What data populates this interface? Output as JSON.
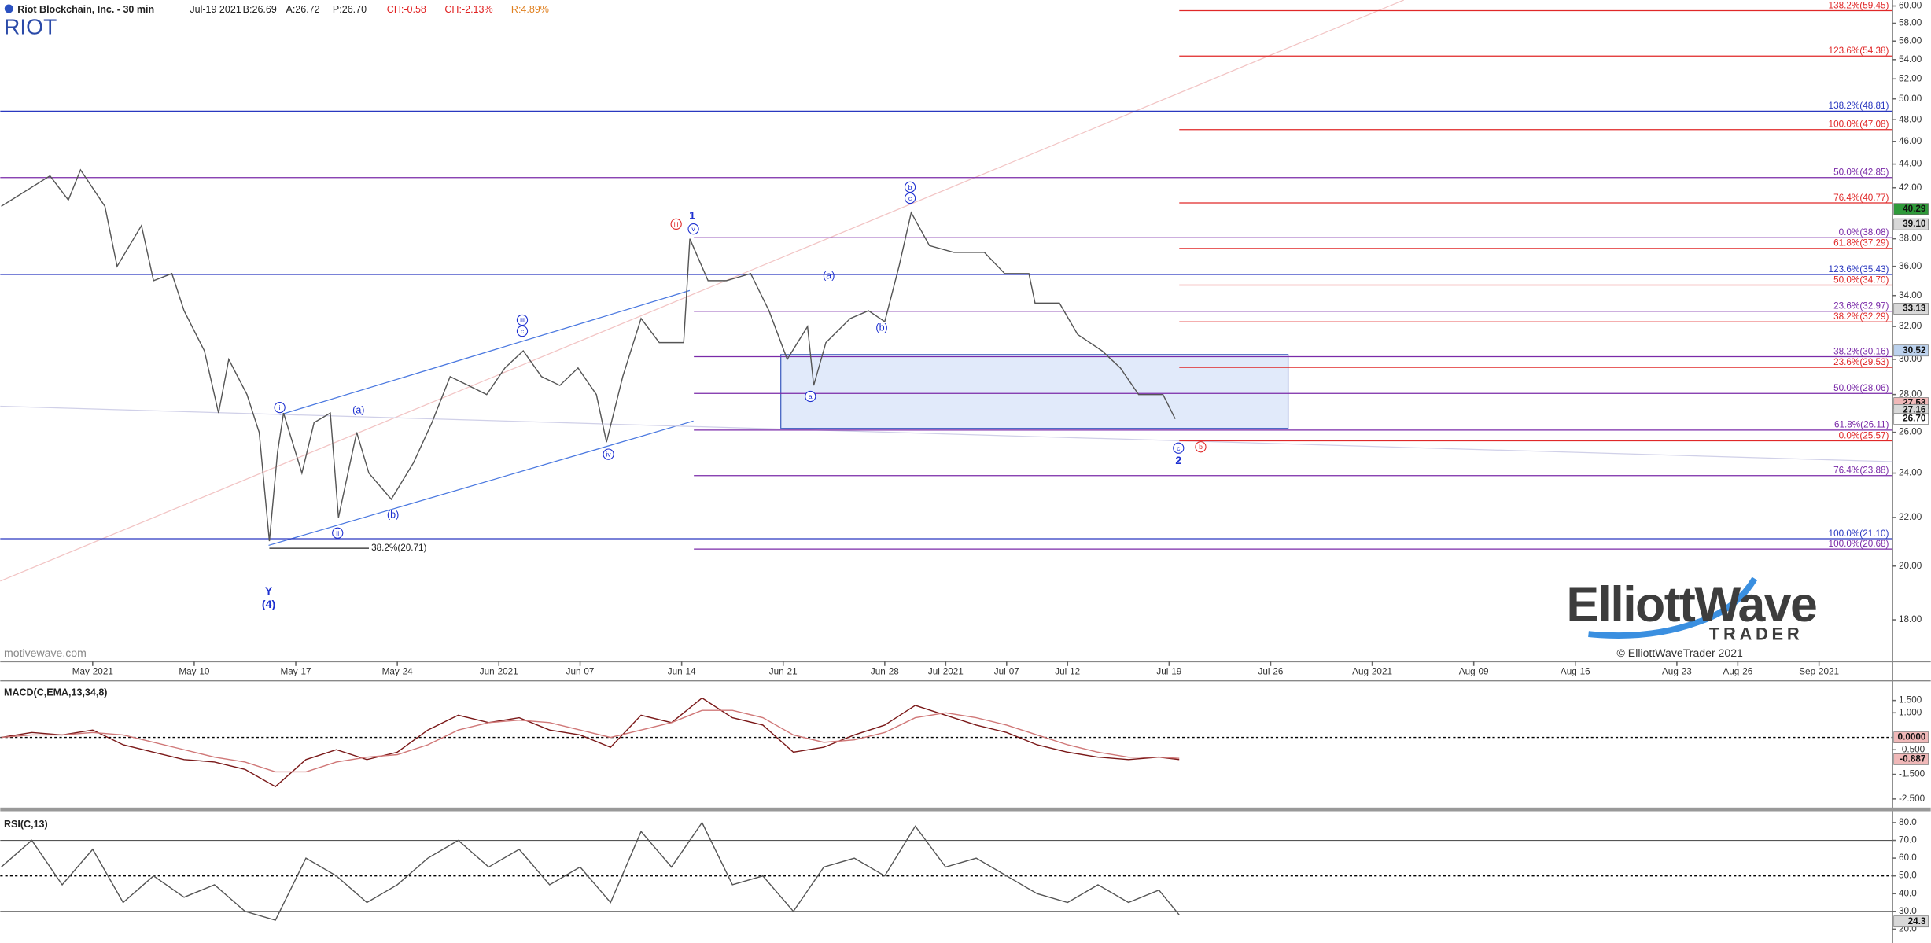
{
  "header": {
    "symbol_name": "Riot Blockchain, Inc. - 30 min",
    "date": "Jul-19 2021",
    "bid": "B:26.69",
    "ask": "A:26.72",
    "price": "P:26.70",
    "change": "CH:-0.58",
    "change_pct": "CH:-2.13%",
    "range": "R:4.89%",
    "ticker": "RIOT"
  },
  "watermark": "motivewave.com",
  "logo": {
    "line1": "ElliottWave",
    "line2": "TRADER",
    "copyright": "© ElliottWaveTrader 2021"
  },
  "chart_data": [
    {
      "type": "line",
      "log_scale": true,
      "color": "#555555",
      "x": [
        -4.5,
        -2.1,
        -1.2,
        -0.6,
        0.6,
        1.2,
        2.4,
        3.0,
        3.9,
        4.5,
        5.5,
        6.2,
        6.7,
        7.6,
        8.2,
        8.7,
        9.1,
        9.4,
        10.3,
        10.9,
        11.7,
        12.1,
        13.0,
        13.6,
        14.7,
        15.8,
        16.7,
        17.6,
        18.5,
        19.4,
        20.3,
        21.2,
        22.1,
        23.0,
        23.9,
        24.8,
        25.3,
        26.1,
        27.0,
        27.9,
        29.1,
        29.4,
        30.3,
        31.2,
        32.4,
        33.3,
        34.2,
        35.2,
        35.5,
        36.1,
        37.3,
        38.2,
        39.0,
        39.7,
        40.3,
        41.2,
        42.4,
        43.9,
        44.9,
        46.1,
        46.4,
        47.6,
        48.5,
        49.7,
        50.6,
        51.5,
        52.7,
        53.3
      ],
      "values": [
        40.5,
        43,
        41,
        43.5,
        40.5,
        36,
        39,
        35,
        35.5,
        33,
        30.5,
        27,
        30,
        28,
        26,
        21,
        25,
        27,
        24,
        26.5,
        27,
        22,
        26,
        24,
        22.8,
        24.5,
        26.5,
        29,
        28.5,
        28,
        29.5,
        30.5,
        29,
        28.5,
        29.5,
        28,
        25.5,
        29,
        32.5,
        31,
        31,
        38,
        35,
        35,
        35.5,
        33,
        30,
        32,
        28.5,
        31,
        32.5,
        33,
        32.3,
        36,
        40,
        37.5,
        37,
        37,
        35.5,
        35.5,
        33.5,
        33.5,
        31.5,
        30.5,
        29.5,
        28,
        28,
        26.7
      ],
      "xlim": [
        -4.55,
        88.5
      ],
      "ylim": [
        16.6,
        60.7
      ],
      "xticks": [
        {
          "value": 0,
          "label": "May-2021"
        },
        {
          "value": 5,
          "label": "May-10"
        },
        {
          "value": 10,
          "label": "May-17"
        },
        {
          "value": 15,
          "label": "May-24"
        },
        {
          "value": 20,
          "label": "Jun-2021"
        },
        {
          "value": 24,
          "label": "Jun-07"
        },
        {
          "value": 29,
          "label": "Jun-14"
        },
        {
          "value": 34,
          "label": "Jun-21"
        },
        {
          "value": 39,
          "label": "Jun-28"
        },
        {
          "value": 42,
          "label": "Jul-2021"
        },
        {
          "value": 45,
          "label": "Jul-07"
        },
        {
          "value": 48,
          "label": "Jul-12"
        },
        {
          "value": 53,
          "label": "Jul-19"
        },
        {
          "value": 58,
          "label": "Jul-26"
        },
        {
          "value": 63,
          "label": "Aug-2021"
        },
        {
          "value": 68,
          "label": "Aug-09"
        },
        {
          "value": 73,
          "label": "Aug-16"
        },
        {
          "value": 78,
          "label": "Aug-23"
        },
        {
          "value": 81,
          "label": "Aug-26"
        },
        {
          "value": 85,
          "label": "Sep-2021"
        }
      ],
      "yticks": [
        {
          "value": 18,
          "label": "18.00"
        },
        {
          "value": 20,
          "label": "20.00"
        },
        {
          "value": 22,
          "label": "22.00"
        },
        {
          "value": 24,
          "label": "24.00"
        },
        {
          "value": 26,
          "label": "26.00"
        },
        {
          "value": 28,
          "label": "28.00"
        },
        {
          "value": 30,
          "label": "30.00"
        },
        {
          "value": 32,
          "label": "32.00"
        },
        {
          "value": 34,
          "label": "34.00"
        },
        {
          "value": 36,
          "label": "36.00"
        },
        {
          "value": 38,
          "label": "38.00"
        },
        {
          "value": 42,
          "label": "42.00"
        },
        {
          "value": 44,
          "label": "44.00"
        },
        {
          "value": 46,
          "label": "46.00"
        },
        {
          "value": 48,
          "label": "48.00"
        },
        {
          "value": 50,
          "label": "50.00"
        },
        {
          "value": 52,
          "label": "52.00"
        },
        {
          "value": 54,
          "label": "54.00"
        },
        {
          "value": 56,
          "label": "56.00"
        },
        {
          "value": 58,
          "label": "58.00"
        },
        {
          "value": 60,
          "label": "60.00"
        }
      ],
      "levels": [
        {
          "label": "138.2%(59.45)",
          "value": 59.45,
          "color": "#e02828",
          "x0": 53.5
        },
        {
          "label": "123.6%(54.38)",
          "value": 54.38,
          "color": "#e02828",
          "x0": 53.5
        },
        {
          "label": "138.2%(48.81)",
          "value": 48.81,
          "color": "#2a38c0",
          "x0": -4.55
        },
        {
          "label": "100.0%(47.08)",
          "value": 47.08,
          "color": "#e02828",
          "x0": 53.5
        },
        {
          "label": "50.0%(42.85)",
          "value": 42.85,
          "color": "#7a2aa8",
          "x0": -4.55
        },
        {
          "label": "76.4%(40.77)",
          "value": 40.77,
          "color": "#e02828",
          "x0": 53.5
        },
        {
          "label": "0.0%(38.08)",
          "value": 38.08,
          "color": "#7a2aa8",
          "x0": 29.6
        },
        {
          "label": "61.8%(37.29)",
          "value": 37.29,
          "color": "#e02828",
          "x0": 53.5
        },
        {
          "label": "123.6%(35.43)",
          "value": 35.43,
          "color": "#2a38c0",
          "x0": -4.55
        },
        {
          "label": "50.0%(34.70)",
          "value": 34.7,
          "color": "#e02828",
          "x0": 53.5
        },
        {
          "label": "23.6%(32.97)",
          "value": 32.97,
          "color": "#7a2aa8",
          "x0": 29.6
        },
        {
          "label": "38.2%(32.29)",
          "value": 32.29,
          "color": "#e02828",
          "x0": 53.5
        },
        {
          "label": "38.2%(30.16)",
          "value": 30.16,
          "color": "#7a2aa8",
          "x0": 29.6
        },
        {
          "label": "23.6%(29.53)",
          "value": 29.53,
          "color": "#e02828",
          "x0": 53.5
        },
        {
          "label": "50.0%(28.06)",
          "value": 28.06,
          "color": "#7a2aa8",
          "x0": 29.6
        },
        {
          "label": "61.8%(26.11)",
          "value": 26.11,
          "color": "#7a2aa8",
          "x0": 29.6
        },
        {
          "label": "0.0%(25.57)",
          "value": 25.57,
          "color": "#e02828",
          "x0": 53.5
        },
        {
          "label": "76.4%(23.88)",
          "value": 23.88,
          "color": "#7a2aa8",
          "x0": 29.6
        },
        {
          "label": "100.0%(21.10)",
          "value": 21.1,
          "color": "#2a38c0",
          "x0": -4.55
        },
        {
          "label": "38.2%(20.71)",
          "value": 20.71,
          "color": "#222222",
          "x0": 8.7,
          "x1": 13.6
        },
        {
          "label": "100.0%(20.68)",
          "value": 20.68,
          "color": "#7a2aa8",
          "x0": 29.6
        }
      ],
      "price_tags": [
        {
          "label": "40.29",
          "value": 40.29,
          "color": "#2f9a3a"
        },
        {
          "label": "39.10",
          "value": 39.1,
          "color": "#d8d8d8"
        },
        {
          "label": "33.13",
          "value": 33.13,
          "color": "#d8d8d8"
        },
        {
          "label": "30.52",
          "value": 30.52,
          "color": "#bcd2ee"
        },
        {
          "label": "27.53",
          "value": 27.53,
          "color": "#f0b8b8"
        },
        {
          "label": "27.16",
          "value": 27.16,
          "color": "#d8d8d8"
        },
        {
          "label": "26.70",
          "value": 26.7,
          "color": "#ffffff"
        }
      ],
      "annotations": [
        {
          "text": "iii",
          "circled": true,
          "color": "#e02828"
        },
        {
          "text": "1",
          "bold": true,
          "color": "#1c2fd0"
        },
        {
          "text": "v",
          "circled": true,
          "color": "#1c2fd0"
        },
        {
          "text": "b",
          "circled": true,
          "color": "#1c2fd0"
        },
        {
          "text": "c",
          "circled": true,
          "color": "#1c2fd0"
        },
        {
          "text": "(a)",
          "color": "#1c2fd0"
        },
        {
          "text": "(b)",
          "color": "#1c2fd0"
        },
        {
          "text": "a",
          "circled": true,
          "color": "#1c2fd0"
        },
        {
          "text": "c",
          "circled": true,
          "color": "#1c2fd0"
        },
        {
          "text": "2",
          "bold": true,
          "color": "#1c2fd0"
        },
        {
          "text": "b",
          "circled": true,
          "color": "#e02828"
        },
        {
          "text": "i",
          "circled": true,
          "color": "#1c2fd0"
        },
        {
          "text": "(a)",
          "color": "#1c2fd0"
        },
        {
          "text": "iii",
          "circled": true,
          "color": "#1c2fd0"
        },
        {
          "text": "c",
          "circled": true,
          "color": "#1c2fd0"
        },
        {
          "text": "(b)",
          "color": "#1c2fd0"
        },
        {
          "text": "ii",
          "circled": true,
          "color": "#1c2fd0"
        },
        {
          "text": "iv",
          "circled": true,
          "color": "#1c2fd0"
        },
        {
          "text": "Y",
          "bold": true,
          "color": "#1c2fd0"
        },
        {
          "text": "(4)",
          "bold": true,
          "color": "#1c2fd0"
        }
      ]
    },
    {
      "type": "line",
      "title": "MACD(C,EMA,13,34,8)",
      "x": [
        -4.5,
        -3,
        -1.5,
        0,
        1.5,
        3,
        4.5,
        6,
        7.5,
        9,
        10.5,
        12,
        13.5,
        15,
        16.5,
        18,
        19.5,
        21,
        22.5,
        24,
        25.5,
        27,
        28.5,
        30,
        31.5,
        33,
        34.5,
        36,
        37.5,
        39,
        40.5,
        42,
        43.5,
        45,
        46.5,
        48,
        49.5,
        51,
        52.5,
        53.5
      ],
      "series": [
        {
          "color": "#7a1818",
          "values": [
            0.0,
            0.2,
            0.1,
            0.3,
            -0.3,
            -0.6,
            -0.9,
            -1.0,
            -1.3,
            -2.0,
            -0.9,
            -0.5,
            -0.9,
            -0.6,
            0.3,
            0.9,
            0.6,
            0.8,
            0.3,
            0.1,
            -0.4,
            0.9,
            0.6,
            1.6,
            0.8,
            0.5,
            -0.6,
            -0.4,
            0.1,
            0.5,
            1.3,
            0.9,
            0.5,
            0.2,
            -0.3,
            -0.6,
            -0.8,
            -0.9,
            -0.8,
            -0.9
          ]
        },
        {
          "color": "#d07878",
          "values": [
            0.0,
            0.1,
            0.1,
            0.2,
            0.1,
            -0.2,
            -0.5,
            -0.8,
            -1.0,
            -1.4,
            -1.4,
            -1.0,
            -0.8,
            -0.7,
            -0.3,
            0.3,
            0.6,
            0.7,
            0.6,
            0.3,
            0.0,
            0.3,
            0.6,
            1.1,
            1.1,
            0.8,
            0.1,
            -0.2,
            -0.1,
            0.2,
            0.8,
            1.0,
            0.8,
            0.5,
            0.1,
            -0.3,
            -0.6,
            -0.8,
            -0.8,
            -0.85
          ]
        }
      ],
      "xlim": [
        -4.55,
        88.5
      ],
      "ylim": [
        -2.85,
        2.3
      ],
      "yticks": [
        {
          "value": 1.5,
          "label": "1.500"
        },
        {
          "value": 1.0,
          "label": "1.000"
        },
        {
          "value": -0.5,
          "label": "-0.500"
        },
        {
          "value": -1.5,
          "label": "-1.500"
        },
        {
          "value": -2.5,
          "label": "-2.500"
        }
      ],
      "hlines": [
        0
      ],
      "price_tags": [
        {
          "label": "0.0000",
          "value": 0,
          "color": "#f0b8b8"
        },
        {
          "label": "-0.887",
          "value": -0.887,
          "color": "#f0b8b8"
        }
      ]
    },
    {
      "type": "line",
      "title": "RSI(C,13)",
      "x": [
        -4.5,
        -3,
        -1.5,
        0,
        1.5,
        3,
        4.5,
        6,
        7.5,
        9,
        10.5,
        12,
        13.5,
        15,
        16.5,
        18,
        19.5,
        21,
        22.5,
        24,
        25.5,
        27,
        28.5,
        30,
        31.5,
        33,
        34.5,
        36,
        37.5,
        39,
        40.5,
        42,
        43.5,
        45,
        46.5,
        48,
        49.5,
        51,
        52.5,
        53.5
      ],
      "values": [
        55,
        70,
        45,
        65,
        35,
        50,
        38,
        45,
        30,
        25,
        60,
        50,
        35,
        45,
        60,
        70,
        55,
        65,
        45,
        55,
        35,
        75,
        55,
        80,
        45,
        50,
        30,
        55,
        60,
        50,
        78,
        55,
        60,
        50,
        40,
        35,
        45,
        35,
        42,
        28
      ],
      "color": "#555555",
      "xlim": [
        -4.55,
        88.5
      ],
      "ylim": [
        12.2,
        85.7
      ],
      "yticks": [
        {
          "value": 20,
          "label": "20.0"
        },
        {
          "value": 30,
          "label": "30.0"
        },
        {
          "value": 40,
          "label": "40.0"
        },
        {
          "value": 50,
          "label": "50.0"
        },
        {
          "value": 60,
          "label": "60.0"
        },
        {
          "value": 70,
          "label": "70.0"
        },
        {
          "value": 80,
          "label": "80.0"
        }
      ],
      "hlines": [
        70,
        50,
        30
      ],
      "price_tags": [
        {
          "label": "24.3",
          "value": 24.3,
          "color": "#d8d8d8"
        }
      ]
    }
  ]
}
